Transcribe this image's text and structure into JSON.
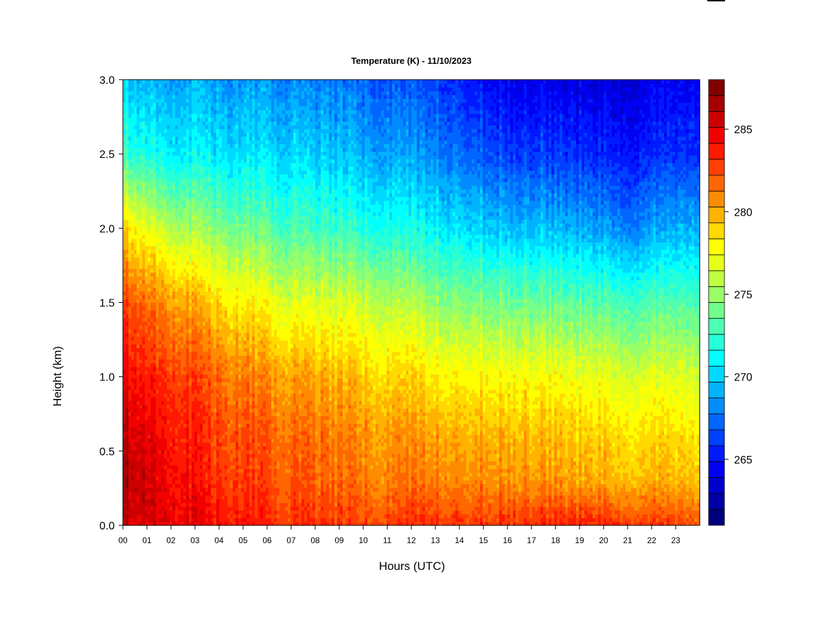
{
  "chart_data": {
    "type": "heatmap",
    "title": "Temperature (K) - 11/10/2023",
    "xlabel": "Hours (UTC)",
    "ylabel": "Height (km)",
    "xlim": [
      0,
      24
    ],
    "ylim": [
      0,
      3
    ],
    "x_ticks": [
      "00",
      "01",
      "02",
      "03",
      "04",
      "05",
      "06",
      "07",
      "08",
      "09",
      "10",
      "11",
      "12",
      "13",
      "14",
      "15",
      "16",
      "17",
      "18",
      "19",
      "20",
      "21",
      "22",
      "23"
    ],
    "y_ticks": [
      "0.0",
      "0.5",
      "1.0",
      "1.5",
      "2.0",
      "2.5",
      "3.0"
    ],
    "colorbar": {
      "min": 261,
      "max": 288,
      "step": 1,
      "ticks": [
        "265",
        "270",
        "275",
        "280",
        "285"
      ],
      "colors": [
        "#00007F",
        "#0000A6",
        "#0000CC",
        "#0000F2",
        "#0019FF",
        "#0040FF",
        "#0066FF",
        "#008CFF",
        "#00B3FF",
        "#00D9FF",
        "#00FFFF",
        "#26FFD9",
        "#4CFFB3",
        "#73FF8C",
        "#99FF66",
        "#BFFF40",
        "#E6FF19",
        "#FFFF00",
        "#FFD900",
        "#FFB300",
        "#FF8C00",
        "#FF6600",
        "#FF4000",
        "#FF1900",
        "#F20000",
        "#CC0000",
        "#A60000",
        "#800000"
      ]
    },
    "profiles": [
      {
        "hour": 0,
        "heights_km": [
          0,
          0.3,
          0.6,
          1.0,
          1.5,
          2.0,
          2.5,
          3.0
        ],
        "temps_K": [
          286.5,
          287.5,
          287.0,
          285.5,
          283.5,
          279.5,
          273.0,
          270.0
        ]
      },
      {
        "hour": 2,
        "heights_km": [
          0,
          0.3,
          0.6,
          1.0,
          1.5,
          2.0,
          2.5,
          3.0
        ],
        "temps_K": [
          286.0,
          285.5,
          285.0,
          284.0,
          281.5,
          276.5,
          271.5,
          269.5
        ]
      },
      {
        "hour": 4,
        "heights_km": [
          0,
          0.3,
          0.6,
          1.0,
          1.5,
          2.0,
          2.5,
          3.0
        ],
        "temps_K": [
          285.0,
          284.0,
          283.5,
          282.5,
          279.5,
          275.0,
          271.0,
          269.0
        ]
      },
      {
        "hour": 7,
        "heights_km": [
          0,
          0.3,
          0.6,
          1.0,
          1.5,
          2.0,
          2.5,
          3.0
        ],
        "temps_K": [
          284.0,
          283.0,
          282.5,
          281.0,
          277.5,
          273.5,
          270.5,
          268.5
        ]
      },
      {
        "hour": 10,
        "heights_km": [
          0,
          0.3,
          0.6,
          1.0,
          1.5,
          2.0,
          2.5,
          3.0
        ],
        "temps_K": [
          283.5,
          282.0,
          281.5,
          280.0,
          277.0,
          272.5,
          269.5,
          267.5
        ]
      },
      {
        "hour": 13,
        "heights_km": [
          0,
          0.3,
          0.6,
          1.0,
          1.5,
          2.0,
          2.5,
          3.0
        ],
        "temps_K": [
          284.0,
          282.0,
          281.0,
          279.0,
          275.5,
          271.5,
          268.5,
          266.5
        ]
      },
      {
        "hour": 16,
        "heights_km": [
          0,
          0.3,
          0.6,
          1.0,
          1.5,
          2.0,
          2.5,
          3.0
        ],
        "temps_K": [
          284.0,
          281.5,
          280.5,
          278.5,
          274.5,
          270.0,
          266.5,
          264.5
        ]
      },
      {
        "hour": 19,
        "heights_km": [
          0,
          0.3,
          0.6,
          1.0,
          1.5,
          2.0,
          2.5,
          3.0
        ],
        "temps_K": [
          284.5,
          281.0,
          280.0,
          278.0,
          274.0,
          269.5,
          266.0,
          264.0
        ]
      },
      {
        "hour": 21,
        "heights_km": [
          0,
          0.3,
          0.6,
          1.0,
          1.5,
          2.0,
          2.5,
          3.0
        ],
        "temps_K": [
          284.0,
          280.5,
          279.5,
          277.5,
          273.5,
          268.5,
          265.5,
          264.0
        ]
      },
      {
        "hour": 24,
        "heights_km": [
          0,
          0.3,
          0.6,
          1.0,
          1.5,
          2.0,
          2.5,
          3.0
        ],
        "temps_K": [
          283.0,
          280.0,
          279.0,
          277.0,
          273.5,
          269.5,
          266.0,
          264.5
        ]
      }
    ]
  }
}
